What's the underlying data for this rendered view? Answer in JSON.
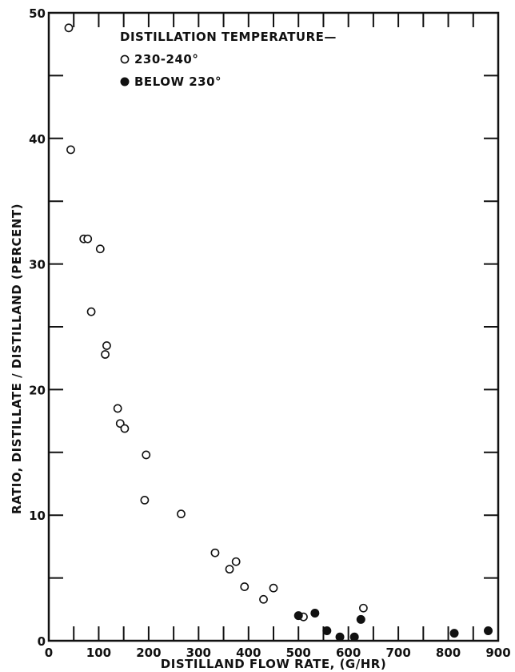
{
  "chart_data": {
    "type": "scatter",
    "xlabel": "DISTILLAND FLOW RATE, (G/HR)",
    "ylabel": "RATIO, DISTILLATE / DISTILLAND (PERCENT)",
    "xlim": [
      0,
      900
    ],
    "ylim": [
      0,
      50
    ],
    "x_ticks": [
      0,
      100,
      200,
      300,
      400,
      500,
      600,
      700,
      800,
      900
    ],
    "y_ticks": [
      0,
      10,
      20,
      30,
      40,
      50
    ],
    "grid": false,
    "legend": {
      "title": "DISTILLATION TEMPERATURE—",
      "placement": "top-center"
    },
    "series": [
      {
        "name": "230-240°",
        "marker": "open-circle",
        "color": "#111111",
        "points": [
          [
            40,
            48.8
          ],
          [
            44,
            39.1
          ],
          [
            70,
            32.0
          ],
          [
            78,
            32.0
          ],
          [
            103,
            31.2
          ],
          [
            85,
            26.2
          ],
          [
            116,
            23.5
          ],
          [
            113,
            22.8
          ],
          [
            138,
            18.5
          ],
          [
            143,
            17.3
          ],
          [
            152,
            16.9
          ],
          [
            195,
            14.8
          ],
          [
            192,
            11.2
          ],
          [
            265,
            10.1
          ],
          [
            333,
            7.0
          ],
          [
            362,
            5.7
          ],
          [
            375,
            6.3
          ],
          [
            392,
            4.3
          ],
          [
            430,
            3.3
          ],
          [
            450,
            4.2
          ],
          [
            510,
            1.9
          ],
          [
            630,
            2.6
          ]
        ]
      },
      {
        "name": "BELOW 230°",
        "marker": "filled-circle",
        "color": "#111111",
        "points": [
          [
            500,
            2.0
          ],
          [
            533,
            2.2
          ],
          [
            557,
            0.8
          ],
          [
            583,
            0.3
          ],
          [
            612,
            0.3
          ],
          [
            625,
            1.7
          ],
          [
            812,
            0.6
          ],
          [
            880,
            0.8
          ]
        ]
      }
    ]
  }
}
